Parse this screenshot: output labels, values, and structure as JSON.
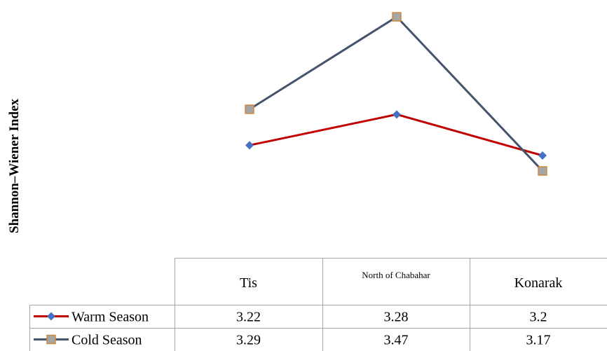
{
  "chart_data": {
    "type": "line",
    "title": "",
    "xlabel": "",
    "ylabel": "Shannon–Wiener Index",
    "categories": [
      "Tis",
      "North of Chabahar",
      "Konarak"
    ],
    "series": [
      {
        "name": "Warm Season",
        "values": [
          3.22,
          3.28,
          3.2
        ],
        "display": [
          "3.22",
          "3.28",
          "3.2"
        ],
        "color": "#c00000",
        "marker": "diamond",
        "marker_color": "#4472c4"
      },
      {
        "name": "Cold Season",
        "values": [
          3.29,
          3.47,
          3.17
        ],
        "display": [
          "3.29",
          "3.47",
          "3.17"
        ],
        "color": "#44546a",
        "marker": "square",
        "marker_color": "#a5a5a5",
        "marker_edge": "#d08a3c"
      }
    ],
    "ylim": [
      3.0,
      3.5
    ],
    "grid": false,
    "legend": "data-table"
  }
}
